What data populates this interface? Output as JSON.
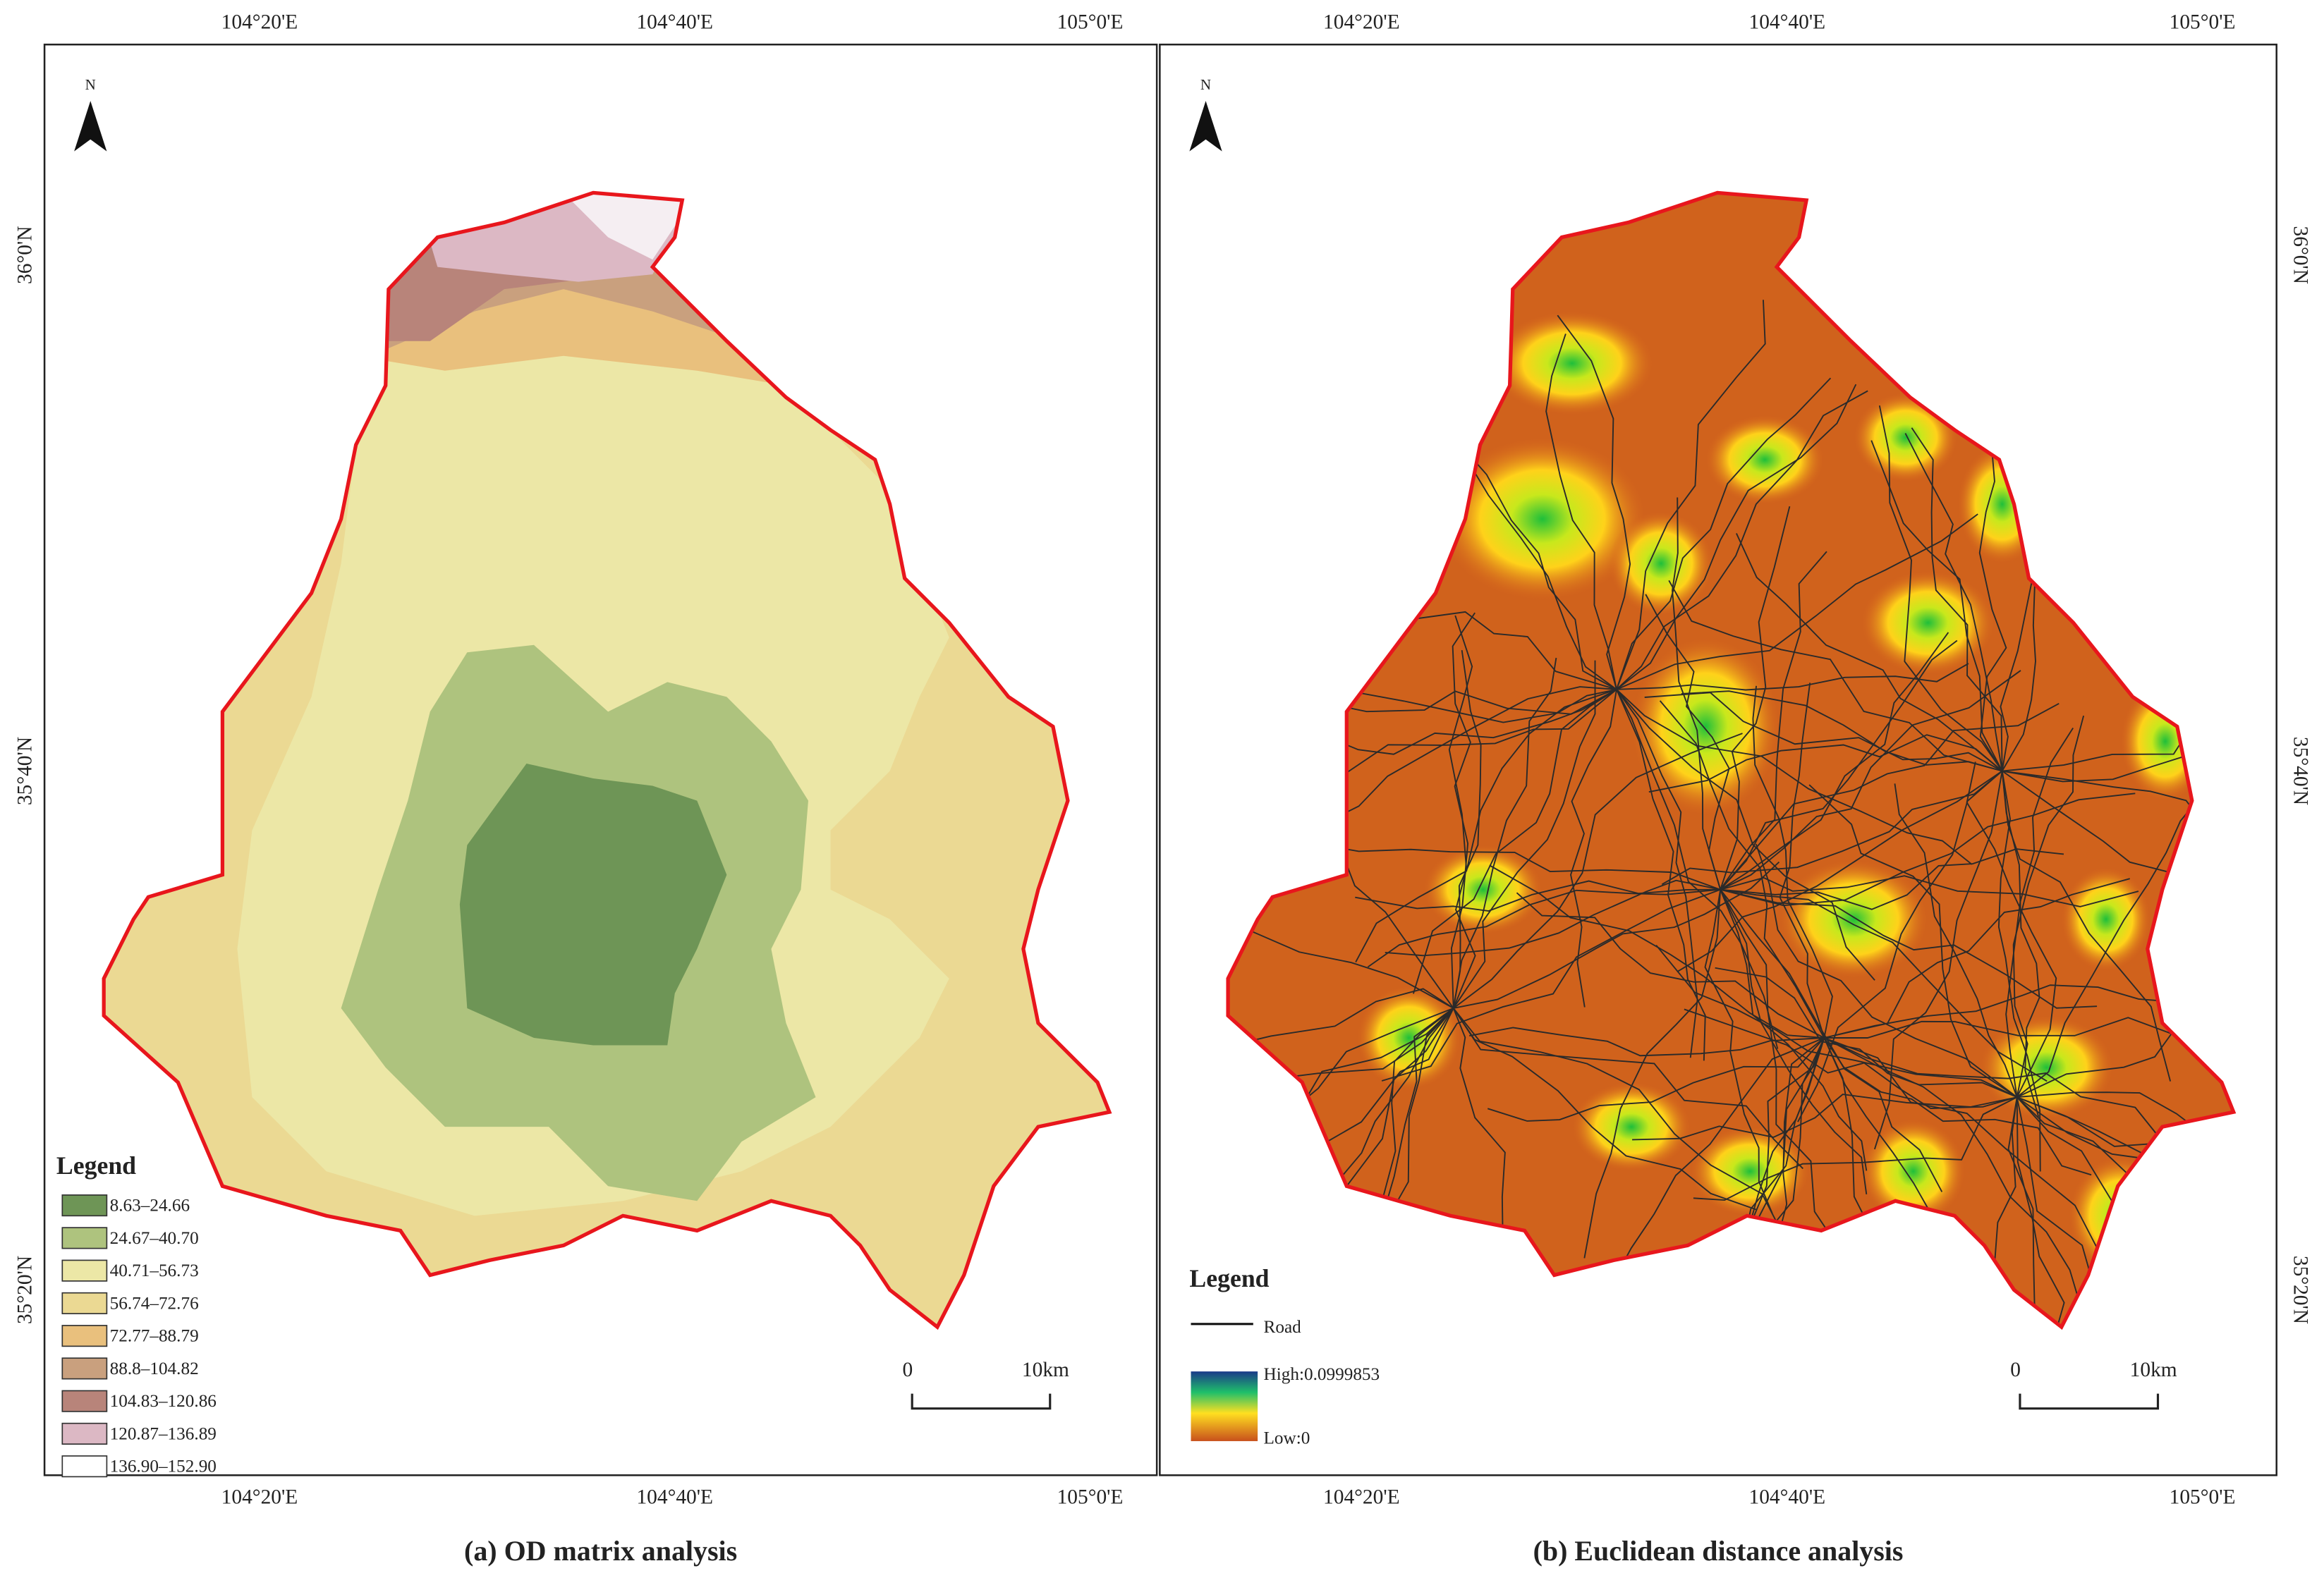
{
  "panels": [
    {
      "caption": "(a) OD matrix analysis",
      "north": "N",
      "top_ticks": [
        "104°20'E",
        "104°40'E",
        "105°0'E"
      ],
      "bottom_ticks": [
        "104°20'E",
        "104°40'E",
        "105°0'E"
      ],
      "lat_ticks": [
        "36°0'N",
        "35°40'N",
        "35°20'N"
      ],
      "legend": {
        "title": "Legend",
        "items": [
          {
            "label": "8.63–24.66",
            "color": "#6e9556"
          },
          {
            "label": "24.67–40.70",
            "color": "#aec37e"
          },
          {
            "label": "40.71–56.73",
            "color": "#ece7a6"
          },
          {
            "label": "56.74–72.76",
            "color": "#ebd993"
          },
          {
            "label": "72.77–88.79",
            "color": "#e9c07d"
          },
          {
            "label": "88.8–104.82",
            "color": "#c9a07e"
          },
          {
            "label": "104.83–120.86",
            "color": "#b8847a"
          },
          {
            "label": "120.87–136.89",
            "color": "#dcb8c4"
          },
          {
            "label": "136.90–152.90",
            "color": "#ffffff"
          }
        ]
      },
      "scale_bar": [
        "0",
        "10km"
      ]
    },
    {
      "caption": "(b) Euclidean distance analysis",
      "north": "N",
      "top_ticks": [
        "104°20'E",
        "104°40'E",
        "105°0'E"
      ],
      "bottom_ticks": [
        "104°20'E",
        "104°40'E",
        "105°0'E"
      ],
      "lat_ticks": [
        "36°0'N",
        "35°40'N",
        "35°20'N"
      ],
      "legend": {
        "title": "Legend",
        "road": "Road",
        "high": "High:0.0999853",
        "low": "Low:0"
      },
      "scale_bar": [
        "0",
        "10km"
      ]
    }
  ]
}
